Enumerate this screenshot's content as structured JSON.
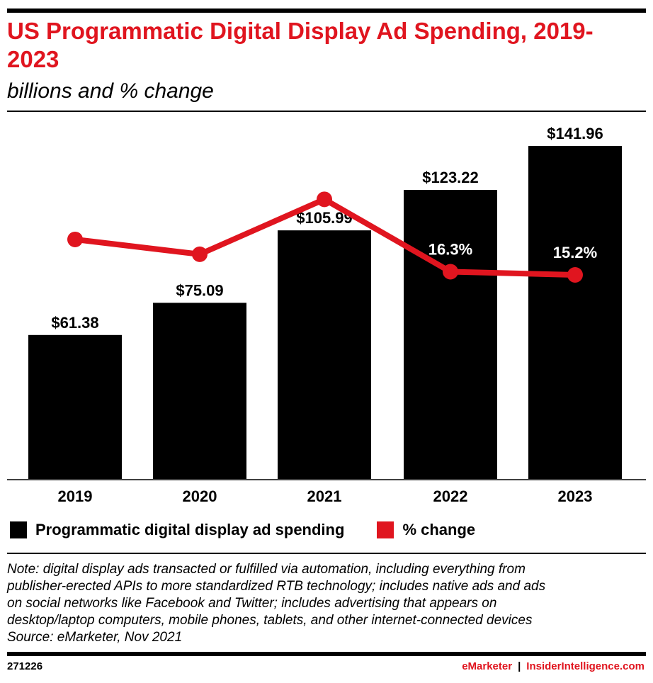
{
  "header": {
    "title": "US Programmatic Digital Display Ad Spending, 2019-2023",
    "subtitle": "billions and % change"
  },
  "colors": {
    "bar": "#000000",
    "line": "#e0151f",
    "accent": "#e0151f"
  },
  "chart_data": {
    "type": "bar",
    "title": "US Programmatic Digital Display Ad Spending, 2019-2023",
    "subtitle": "billions and % change",
    "categories": [
      "2019",
      "2020",
      "2021",
      "2022",
      "2023"
    ],
    "series": [
      {
        "name": "Programmatic digital display ad spending",
        "type": "bar",
        "values": [
          61.38,
          75.09,
          105.99,
          123.22,
          141.96
        ],
        "labels": [
          "$61.38",
          "$75.09",
          "$105.99",
          "$123.22",
          "$141.96"
        ]
      },
      {
        "name": "% change",
        "type": "line",
        "values": [
          27.4,
          22.3,
          41.2,
          16.3,
          15.2
        ],
        "labels": [
          "27.4%",
          "22.3%",
          "41.2%",
          "16.3%",
          "15.2%"
        ]
      }
    ],
    "ylim": [
      0,
      145
    ],
    "y2lim": [
      -55,
      62
    ],
    "grid": false,
    "legend": "bottom"
  },
  "legend": {
    "bars_label": "Programmatic digital display ad spending",
    "line_label": "% change"
  },
  "note": {
    "lines": [
      "Note: digital display ads transacted or fulfilled via automation, including everything from",
      "publisher-erected APIs to more standardized RTB technology; includes native ads and ads",
      "on social networks like Facebook and Twitter; includes advertising that appears on",
      "desktop/laptop computers, mobile phones, tablets, and other internet-connected devices"
    ],
    "source": "Source: eMarketer, Nov 2021"
  },
  "footer": {
    "id": "271226",
    "brand1": "eMarketer",
    "separator": "|",
    "brand2": "InsiderIntelligence.com"
  }
}
